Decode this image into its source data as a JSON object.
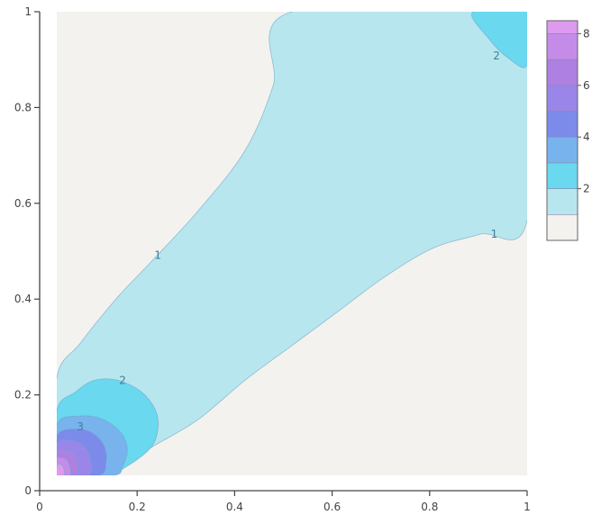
{
  "chart_data": {
    "type": "contour",
    "title": "",
    "xlabel": "",
    "ylabel": "",
    "xlim": [
      0,
      1
    ],
    "ylim": [
      0,
      1
    ],
    "x_ticks": [
      0,
      0.2,
      0.4,
      0.6,
      0.8,
      1
    ],
    "x_tick_labels": [
      "0",
      "0.2",
      "0.4",
      "0.6",
      "0.8",
      "1"
    ],
    "y_ticks": [
      0,
      0.2,
      0.4,
      0.6,
      0.8,
      1
    ],
    "y_tick_labels": [
      "0",
      "0.2",
      "0.4",
      "0.6",
      "0.8",
      "1"
    ],
    "grid": false,
    "colorbar": {
      "position": "right",
      "levels": [
        0,
        1,
        2,
        3,
        4,
        5,
        6,
        7,
        8,
        8.5
      ],
      "colors": [
        "#f4f2ee",
        "#b8e6ee",
        "#6ad8ef",
        "#78b3ee",
        "#7c8aea",
        "#9a86e8",
        "#ad80e2",
        "#c48ce8",
        "#dd9aef",
        "#f4aef5"
      ],
      "tick_values": [
        2,
        4,
        6,
        8
      ],
      "tick_labels": [
        "2",
        "4",
        "6",
        "8"
      ]
    },
    "contour_labels": [
      {
        "text": "1",
        "x": 0.215,
        "y": 0.475
      },
      {
        "text": "1",
        "x": 0.93,
        "y": 0.52
      },
      {
        "text": "2",
        "x": 0.14,
        "y": 0.205
      },
      {
        "text": "2",
        "x": 0.935,
        "y": 0.905
      },
      {
        "text": "3",
        "x": 0.05,
        "y": 0.105
      }
    ],
    "regions": [
      {
        "level": 1,
        "points": [
          [
            0.0,
            0.21
          ],
          [
            0.05,
            0.285
          ],
          [
            0.13,
            0.385
          ],
          [
            0.2,
            0.46
          ],
          [
            0.3,
            0.57
          ],
          [
            0.4,
            0.7
          ],
          [
            0.46,
            0.84
          ],
          [
            0.5,
            1.0
          ],
          [
            1.0,
            1.0
          ],
          [
            1.0,
            0.55
          ],
          [
            0.9,
            0.52
          ],
          [
            0.8,
            0.49
          ],
          [
            0.7,
            0.43
          ],
          [
            0.6,
            0.355
          ],
          [
            0.5,
            0.28
          ],
          [
            0.4,
            0.205
          ],
          [
            0.3,
            0.12
          ],
          [
            0.2,
            0.06
          ],
          [
            0.1,
            0.0
          ],
          [
            0.0,
            0.0
          ]
        ]
      },
      {
        "level": 2,
        "points": [
          [
            0.0,
            0.14
          ],
          [
            0.04,
            0.18
          ],
          [
            0.08,
            0.205
          ],
          [
            0.13,
            0.205
          ],
          [
            0.18,
            0.18
          ],
          [
            0.21,
            0.14
          ],
          [
            0.215,
            0.1
          ],
          [
            0.2,
            0.06
          ],
          [
            0.15,
            0.02
          ],
          [
            0.1,
            0.0
          ],
          [
            0.0,
            0.0
          ]
        ]
      },
      {
        "level": 2,
        "points": [
          [
            0.885,
            1.0
          ],
          [
            0.92,
            0.94
          ],
          [
            0.96,
            0.9
          ],
          [
            1.0,
            0.885
          ],
          [
            1.0,
            1.0
          ]
        ]
      },
      {
        "level": 3,
        "points": [
          [
            0.0,
            0.11
          ],
          [
            0.05,
            0.128
          ],
          [
            0.1,
            0.12
          ],
          [
            0.138,
            0.09
          ],
          [
            0.15,
            0.055
          ],
          [
            0.14,
            0.02
          ],
          [
            0.12,
            0.0
          ],
          [
            0.0,
            0.0
          ]
        ]
      },
      {
        "level": 4,
        "points": [
          [
            0.0,
            0.085
          ],
          [
            0.04,
            0.1
          ],
          [
            0.075,
            0.092
          ],
          [
            0.1,
            0.065
          ],
          [
            0.105,
            0.03
          ],
          [
            0.09,
            0.0
          ],
          [
            0.0,
            0.0
          ]
        ]
      },
      {
        "level": 5,
        "points": [
          [
            0.0,
            0.068
          ],
          [
            0.03,
            0.075
          ],
          [
            0.055,
            0.065
          ],
          [
            0.07,
            0.04
          ],
          [
            0.068,
            0.0
          ],
          [
            0.0,
            0.0
          ]
        ]
      },
      {
        "level": 6,
        "points": [
          [
            0.0,
            0.05
          ],
          [
            0.02,
            0.054
          ],
          [
            0.038,
            0.045
          ],
          [
            0.045,
            0.02
          ],
          [
            0.04,
            0.0
          ],
          [
            0.0,
            0.0
          ]
        ]
      },
      {
        "level": 7,
        "points": [
          [
            0.0,
            0.036
          ],
          [
            0.015,
            0.037
          ],
          [
            0.025,
            0.028
          ],
          [
            0.028,
            0.0
          ],
          [
            0.0,
            0.0
          ]
        ]
      },
      {
        "level": 8,
        "points": [
          [
            0.0,
            0.022
          ],
          [
            0.008,
            0.024
          ],
          [
            0.015,
            0.015
          ],
          [
            0.015,
            0.0
          ],
          [
            0.0,
            0.0
          ]
        ]
      }
    ]
  }
}
